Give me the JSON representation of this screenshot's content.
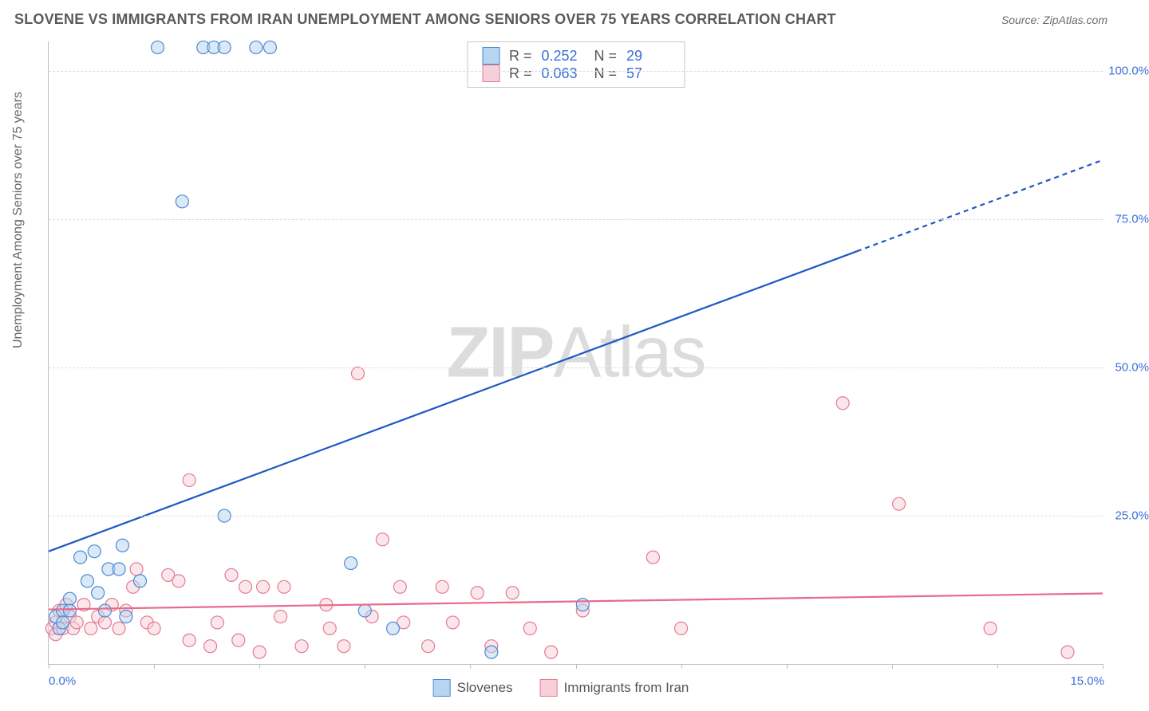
{
  "header": {
    "title": "SLOVENE VS IMMIGRANTS FROM IRAN UNEMPLOYMENT AMONG SENIORS OVER 75 YEARS CORRELATION CHART",
    "source": "Source: ZipAtlas.com"
  },
  "ylabel": "Unemployment Among Seniors over 75 years",
  "watermark": {
    "bold": "ZIP",
    "rest": "Atlas"
  },
  "stats": {
    "series1": {
      "r_label": "R =",
      "r_value": "0.252",
      "n_label": "N =",
      "n_value": "29"
    },
    "series2": {
      "r_label": "R =",
      "r_value": "0.063",
      "n_label": "N =",
      "n_value": "57"
    }
  },
  "legend": {
    "series1_label": "Slovenes",
    "series2_label": "Immigrants from Iran"
  },
  "chart": {
    "type": "scatter-with-trendlines",
    "background_color": "#ffffff",
    "grid_color": "#dcdcdc",
    "axis_color": "#bfbfbf",
    "tick_label_color": "#3a6fd8",
    "xlim": [
      0,
      15
    ],
    "ylim": [
      0,
      105
    ],
    "x_ticks": [
      0,
      1.5,
      3,
      4.5,
      6,
      7.5,
      9,
      10.5,
      12,
      13.5,
      15
    ],
    "x_tick_labels": {
      "left": "0.0%",
      "right": "15.0%"
    },
    "y_gridlines": [
      25,
      50,
      75,
      100
    ],
    "y_tick_labels": [
      "25.0%",
      "50.0%",
      "75.0%",
      "100.0%"
    ],
    "marker_radius": 8,
    "marker_stroke_width": 1.2,
    "series": {
      "slovenes": {
        "fill": "#b7d4f0",
        "stroke": "#4a8bd6",
        "fill_opacity": 0.5,
        "trend": {
          "color": "#1f57c4",
          "width": 2.2,
          "solid_to_x": 11.5,
          "y_at_0": 19,
          "slope": 4.4
        },
        "points": [
          [
            0.1,
            8
          ],
          [
            0.15,
            6
          ],
          [
            0.2,
            9
          ],
          [
            0.2,
            7
          ],
          [
            0.3,
            11
          ],
          [
            0.3,
            9
          ],
          [
            0.45,
            18
          ],
          [
            0.55,
            14
          ],
          [
            0.65,
            19
          ],
          [
            0.7,
            12
          ],
          [
            0.8,
            9
          ],
          [
            0.85,
            16
          ],
          [
            1.0,
            16
          ],
          [
            1.05,
            20
          ],
          [
            1.1,
            8
          ],
          [
            1.3,
            14
          ],
          [
            1.55,
            104
          ],
          [
            1.9,
            78
          ],
          [
            2.2,
            104
          ],
          [
            2.35,
            104
          ],
          [
            2.5,
            104
          ],
          [
            2.5,
            25
          ],
          [
            2.95,
            104
          ],
          [
            3.15,
            104
          ],
          [
            4.3,
            17
          ],
          [
            4.5,
            9
          ],
          [
            4.9,
            6
          ],
          [
            6.3,
            2
          ],
          [
            7.6,
            10
          ]
        ]
      },
      "iran": {
        "fill": "#f7cfd8",
        "stroke": "#e47a93",
        "fill_opacity": 0.5,
        "trend": {
          "color": "#e86a8a",
          "width": 2.2,
          "y_at_0": 9.2,
          "slope": 0.18
        },
        "points": [
          [
            0.05,
            6
          ],
          [
            0.1,
            7
          ],
          [
            0.1,
            5
          ],
          [
            0.15,
            9
          ],
          [
            0.2,
            6
          ],
          [
            0.25,
            10
          ],
          [
            0.3,
            8
          ],
          [
            0.35,
            6
          ],
          [
            0.4,
            7
          ],
          [
            0.5,
            10
          ],
          [
            0.6,
            6
          ],
          [
            0.7,
            8
          ],
          [
            0.8,
            7
          ],
          [
            0.9,
            10
          ],
          [
            1.0,
            6
          ],
          [
            1.1,
            9
          ],
          [
            1.2,
            13
          ],
          [
            1.25,
            16
          ],
          [
            1.4,
            7
          ],
          [
            1.5,
            6
          ],
          [
            1.7,
            15
          ],
          [
            1.85,
            14
          ],
          [
            2.0,
            4
          ],
          [
            2.0,
            31
          ],
          [
            2.3,
            3
          ],
          [
            2.4,
            7
          ],
          [
            2.6,
            15
          ],
          [
            2.7,
            4
          ],
          [
            2.8,
            13
          ],
          [
            3.0,
            2
          ],
          [
            3.05,
            13
          ],
          [
            3.3,
            8
          ],
          [
            3.35,
            13
          ],
          [
            3.6,
            3
          ],
          [
            3.95,
            10
          ],
          [
            4.0,
            6
          ],
          [
            4.2,
            3
          ],
          [
            4.4,
            49
          ],
          [
            4.6,
            8
          ],
          [
            4.75,
            21
          ],
          [
            5.0,
            13
          ],
          [
            5.05,
            7
          ],
          [
            5.4,
            3
          ],
          [
            5.6,
            13
          ],
          [
            5.75,
            7
          ],
          [
            6.1,
            12
          ],
          [
            6.3,
            3
          ],
          [
            6.6,
            12
          ],
          [
            6.85,
            6
          ],
          [
            7.15,
            2
          ],
          [
            7.6,
            9
          ],
          [
            8.6,
            18
          ],
          [
            9.0,
            6
          ],
          [
            11.3,
            44
          ],
          [
            12.1,
            27
          ],
          [
            13.4,
            6
          ],
          [
            14.5,
            2
          ]
        ]
      }
    }
  }
}
